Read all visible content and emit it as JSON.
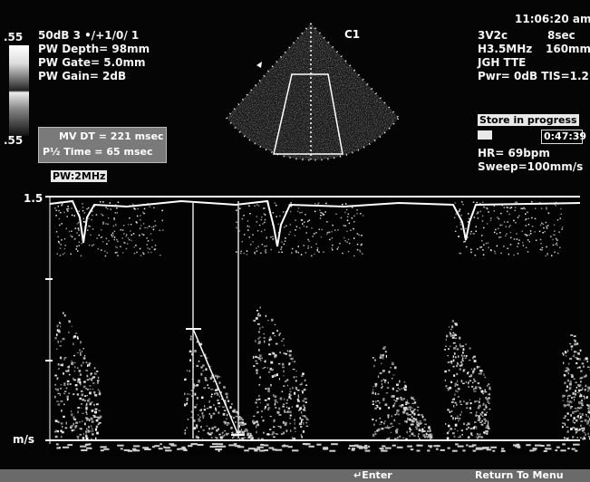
{
  "left_info": {
    "gray_top": ".55",
    "gray_bottom": ".55",
    "line1": "50dB  3 •/+1/0/ 1",
    "line2": "PW Depth= 98mm",
    "line3": "PW Gate= 5.0mm",
    "line4": "PW Gain=   2dB"
  },
  "measurements": {
    "mv_dt": "MV DT = 221 msec",
    "p_half_time": "P½ Time = 65 msec"
  },
  "pw_freq": "PW:2MHz",
  "probe_label": "C1",
  "right_info": {
    "time": "11:06:20 am",
    "probe": "3V2c",
    "duration": "8sec",
    "freq": "H3.5MHz",
    "depth": "160mm",
    "facility": "JGH TTE",
    "power": "Pwr=   0dB TIS=1.2",
    "store": "Store in progress",
    "timer": "0:47:39",
    "hr": "HR=  69bpm",
    "sweep": "Sweep=100mm/s"
  },
  "doppler": {
    "scale_max": "1.5",
    "unit": "m/s"
  },
  "softkeys": {
    "enter": "↵Enter",
    "return": "Return To Menu"
  },
  "colors": {
    "background": "#050505",
    "text": "#f4f4f4",
    "overlay_gray": "#7a7a7a"
  }
}
